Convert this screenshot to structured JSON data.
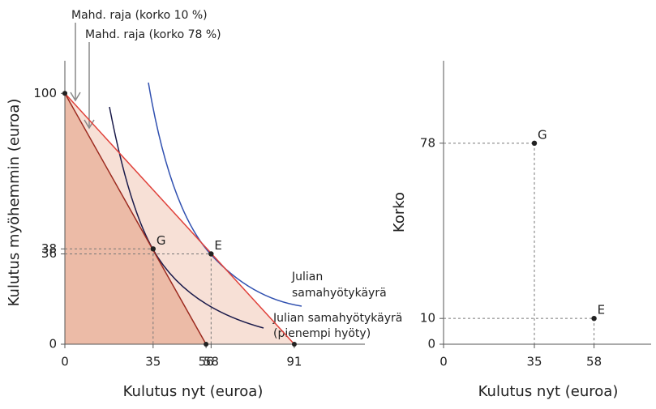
{
  "chart_data": [
    {
      "type": "line",
      "x_label": "Kulutus nyt (euroa)",
      "y_label": "Kulutus myöhemmin (euroa)",
      "xlim": [
        0,
        119
      ],
      "ylim": [
        0,
        113
      ],
      "xticks": [
        0,
        35,
        56,
        58,
        91
      ],
      "yticks": [
        0,
        36,
        38,
        100
      ],
      "series": [
        {
          "name": "Mahd. raja (korko 10 %)",
          "color": "#e0413a",
          "fill": "#f7e0d6",
          "x": [
            0,
            91
          ],
          "values": [
            100,
            0
          ]
        },
        {
          "name": "Mahd. raja (korko 78 %)",
          "color": "#9c2a1f",
          "fill": "#ecbba7",
          "x": [
            0,
            56
          ],
          "values": [
            100,
            0
          ]
        }
      ],
      "points": [
        {
          "label": "G",
          "x": 35,
          "y": 38
        },
        {
          "label": "E",
          "x": 58,
          "y": 36
        }
      ],
      "curve_labels": [
        [
          "Julian",
          "samahyötykäyrä"
        ],
        [
          "Julian samahyötykäyrä",
          "(pienempi hyöty)"
        ]
      ]
    },
    {
      "type": "scatter",
      "x_label": "Kulutus nyt (euroa)",
      "y_label": "Korko",
      "xlim": [
        0,
        80
      ],
      "ylim": [
        0,
        110
      ],
      "xticks": [
        0,
        35,
        58
      ],
      "yticks": [
        0,
        10,
        78
      ],
      "points": [
        {
          "label": "G",
          "x": 35,
          "y": 78
        },
        {
          "label": "E",
          "x": 58,
          "y": 10
        }
      ]
    }
  ]
}
